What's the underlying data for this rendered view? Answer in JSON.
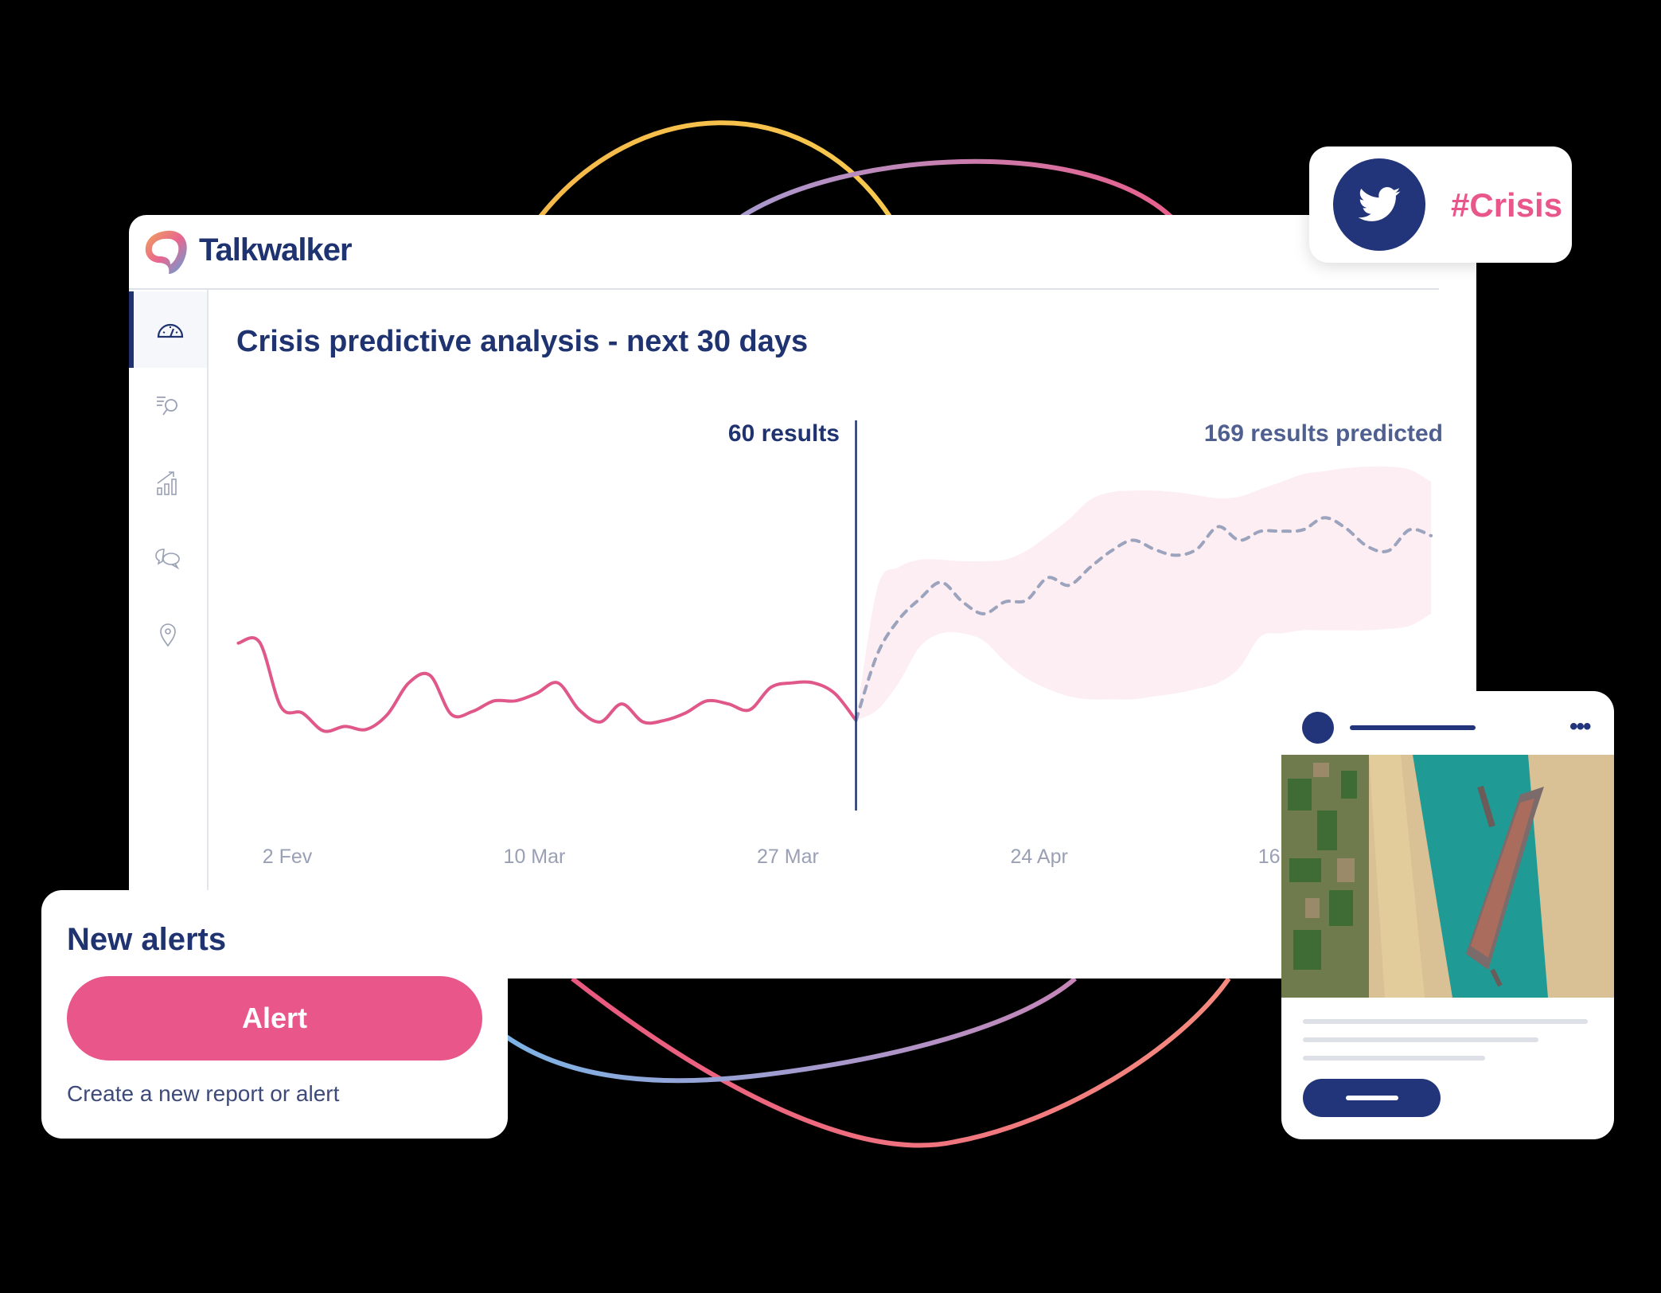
{
  "app": {
    "brand": "Talkwalker"
  },
  "sidebar": {
    "items": [
      {
        "icon": "dashboard-gauge-icon",
        "active": true
      },
      {
        "icon": "search-list-icon"
      },
      {
        "icon": "bar-chart-trend-icon"
      },
      {
        "icon": "chat-bubbles-icon"
      },
      {
        "icon": "location-pin-icon"
      }
    ]
  },
  "main": {
    "title": "Crisis predictive analysis - next 30 days",
    "actual_label": "60 results",
    "predicted_label": "169 results predicted"
  },
  "chart_data": {
    "type": "line",
    "title": "Crisis predictive analysis - next 30 days",
    "x_ticks": [
      {
        "label": "2 Fev",
        "at": 2.3
      },
      {
        "label": "10 Mar",
        "at": 13.9
      },
      {
        "label": "27 Mar",
        "at": 25.8
      },
      {
        "label": "24 Apr",
        "at": 37.6
      },
      {
        "label": "16",
        "at": 48.4
      }
    ],
    "divider_at": 29,
    "series": [
      {
        "kind": "actual",
        "color": "#e0578a",
        "start": 0,
        "values": [
          111.5,
          112,
          69,
          65,
          53,
          56,
          54,
          64,
          85,
          90,
          64,
          66,
          73,
          73,
          78,
          85,
          67,
          59,
          71,
          59,
          60,
          65,
          73,
          71,
          67,
          82,
          85,
          85,
          78,
          60
        ]
      },
      {
        "kind": "predicted",
        "color": "#9ba3bd",
        "dashed": true,
        "start": 29,
        "values": [
          60,
          104,
          127,
          141,
          152,
          139,
          131,
          139,
          140,
          155,
          150,
          162,
          173,
          180,
          174,
          170,
          174,
          189,
          180,
          186,
          186,
          187,
          195,
          188,
          176,
          173,
          187,
          183
        ]
      }
    ],
    "confidence_band": {
      "color": "#fdeef3",
      "start": 29,
      "low": [
        60,
        67,
        85,
        109,
        118,
        118,
        113,
        99,
        88,
        81,
        76,
        74,
        74,
        74,
        76,
        78,
        81,
        85,
        95,
        116,
        118,
        120,
        120,
        120,
        120,
        121,
        123,
        131
      ],
      "high": [
        60,
        148,
        162,
        167,
        167,
        166,
        166,
        167,
        173,
        183,
        194,
        207,
        212,
        213,
        213,
        212,
        210,
        208,
        209,
        214,
        219,
        224,
        226,
        228,
        229,
        229,
        227,
        219
      ]
    },
    "grid": false,
    "legend": "none"
  },
  "twitter_card": {
    "icon": "twitter-bird-icon",
    "hashtag": "#Crisis",
    "color": "#22357a"
  },
  "alerts_card": {
    "title": "New alerts",
    "button_label": "Alert",
    "subtitle": "Create a new report or alert"
  },
  "post_card": {
    "more_icon": "more-dots-icon",
    "image": "suez-canal-ship-satellite-image"
  },
  "colors": {
    "navy": "#1f3370",
    "pink": "#e8568a",
    "band": "#fdeef3"
  }
}
